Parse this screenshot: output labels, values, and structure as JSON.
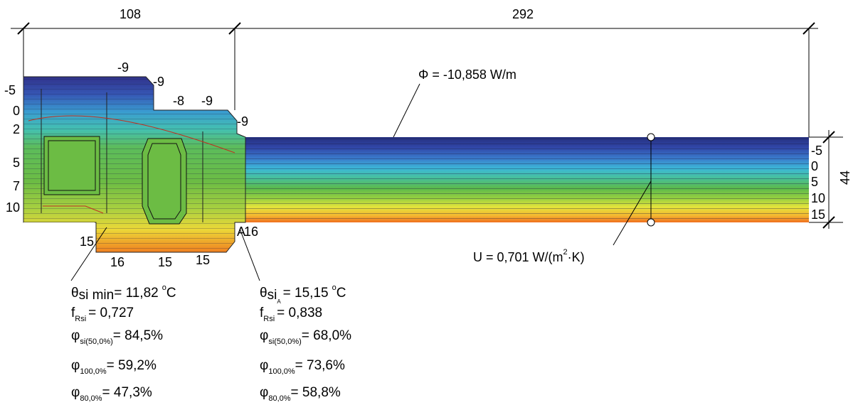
{
  "dimensions": {
    "frame_width": "108",
    "glass_width": "292",
    "thickness": "44"
  },
  "heat_flow": "Φ = -10,858 W/m",
  "u_value": {
    "text": "U = 0,701 W/(m",
    "sup": "2",
    "end": "·K)"
  },
  "isotherm_labels": {
    "left": [
      "-5",
      "0",
      "2",
      "5",
      "7",
      "10"
    ],
    "top": [
      "-9",
      "-9",
      "-8",
      "-9",
      "-9"
    ],
    "right": [
      "-5",
      "0",
      "5",
      "10",
      "15"
    ],
    "bottom": [
      "15",
      "16",
      "15",
      "15",
      "16"
    ],
    "point": "A"
  },
  "results_min": [
    {
      "symbol": "θ",
      "sub": "si min",
      "text": "= 11,82",
      "sup": "o",
      "unit": "C"
    },
    {
      "symbol": "f",
      "sub": "Rsi",
      "text": "= 0,727"
    },
    {
      "symbol": "φ",
      "sub": "si(50,0%)",
      "text": "= 84,5%"
    },
    {
      "symbol": "φ",
      "sub": "100,0%",
      "text": "= 59,2%"
    },
    {
      "symbol": "φ",
      "sub": "80,0%",
      "text": "= 47,3%"
    }
  ],
  "results_a": [
    {
      "symbol": "θ",
      "sub": "si",
      "subsub": "A",
      "text": "= 15,15",
      "sup": "o",
      "unit": "C"
    },
    {
      "symbol": "f",
      "sub": "Rsi",
      "text": "= 0,838"
    },
    {
      "symbol": "φ",
      "sub": "si(50,0%)",
      "text": "= 68,0%"
    },
    {
      "symbol": "φ",
      "sub": "100,0%",
      "text": "= 73,6%"
    },
    {
      "symbol": "φ",
      "sub": "80,0%",
      "text": "= 58,8%"
    }
  ]
}
